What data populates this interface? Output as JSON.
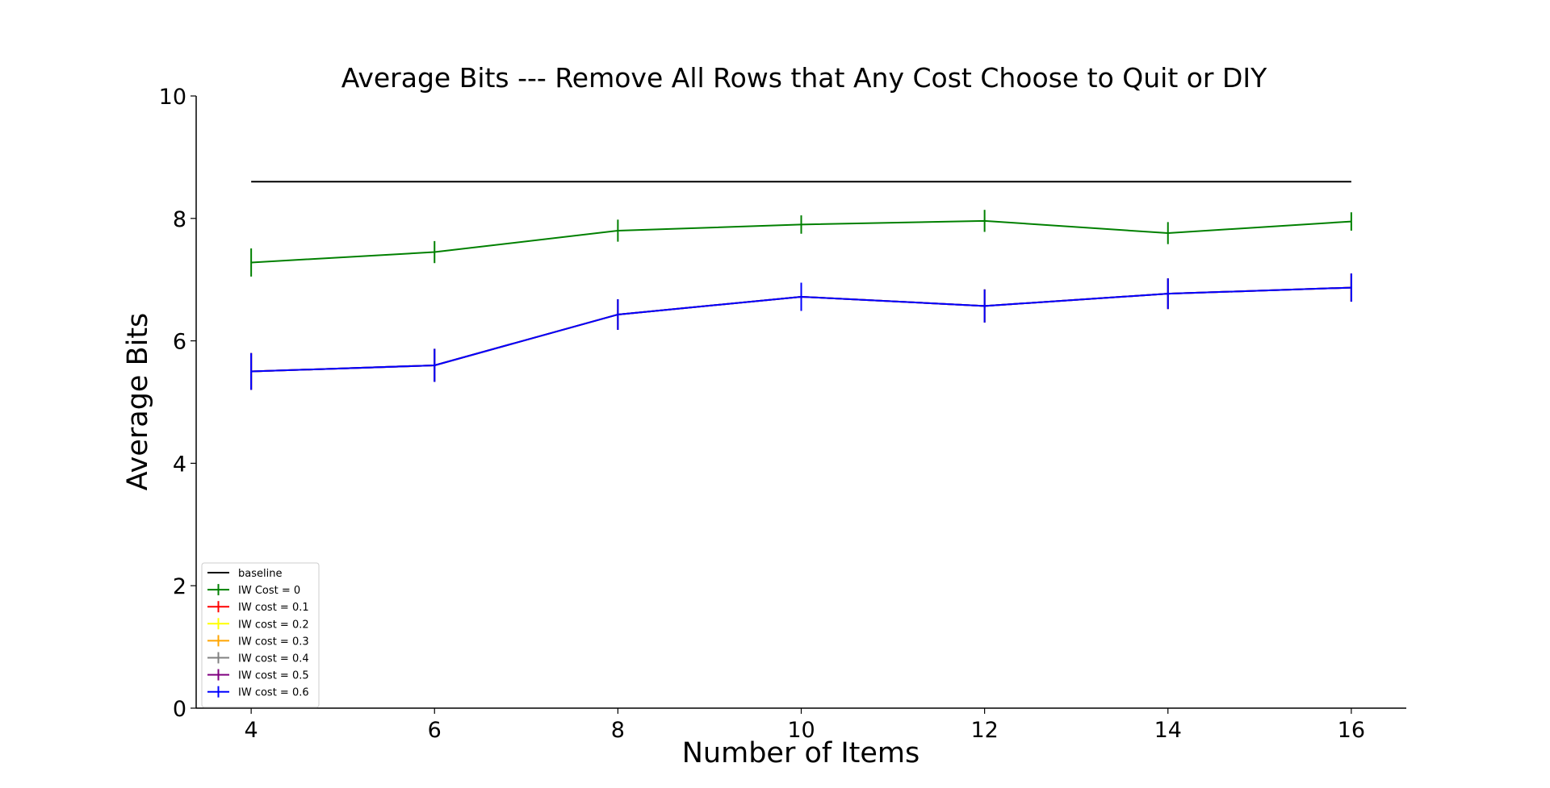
{
  "chart_data": {
    "type": "line",
    "title": "Average Bits --- Remove All Rows that Any Cost Choose to Quit or DIY",
    "xlabel": "Number of Items",
    "ylabel": "Average Bits",
    "x": [
      4,
      6,
      8,
      10,
      12,
      14,
      16
    ],
    "xlim": [
      3.4,
      16.6
    ],
    "ylim": [
      0,
      10
    ],
    "xticks": [
      "4",
      "6",
      "8",
      "10",
      "12",
      "14",
      "16"
    ],
    "yticks": [
      "0",
      "2",
      "4",
      "6",
      "8",
      "10"
    ],
    "grid": false,
    "legend_position": "lower-left",
    "series": [
      {
        "name": "baseline",
        "color": "#000000",
        "values": [
          8.6,
          8.6,
          8.6,
          8.6,
          8.6,
          8.6,
          8.6
        ],
        "errors": null
      },
      {
        "name": "IW Cost = 0",
        "color": "#008000",
        "values": [
          7.28,
          7.45,
          7.8,
          7.9,
          7.96,
          7.76,
          7.95
        ],
        "errors": [
          0.23,
          0.18,
          0.18,
          0.15,
          0.18,
          0.18,
          0.15
        ]
      },
      {
        "name": "IW cost = 0.1",
        "color": "#ff0000",
        "values": [
          5.5,
          5.6,
          6.43,
          6.72,
          6.57,
          6.77,
          6.87
        ],
        "errors": [
          0.3,
          0.27,
          0.25,
          0.23,
          0.27,
          0.25,
          0.23
        ]
      },
      {
        "name": "IW cost = 0.2",
        "color": "#ffff00",
        "values": [
          5.5,
          5.6,
          6.43,
          6.72,
          6.57,
          6.77,
          6.87
        ],
        "errors": [
          0.3,
          0.27,
          0.25,
          0.23,
          0.27,
          0.25,
          0.23
        ]
      },
      {
        "name": "IW cost = 0.3",
        "color": "#ffa500",
        "values": [
          5.5,
          5.6,
          6.43,
          6.72,
          6.57,
          6.77,
          6.87
        ],
        "errors": [
          0.3,
          0.27,
          0.25,
          0.23,
          0.27,
          0.25,
          0.23
        ]
      },
      {
        "name": "IW cost = 0.4",
        "color": "#808080",
        "values": [
          5.5,
          5.6,
          6.43,
          6.72,
          6.57,
          6.77,
          6.87
        ],
        "errors": [
          0.3,
          0.27,
          0.25,
          0.23,
          0.27,
          0.25,
          0.23
        ]
      },
      {
        "name": "IW cost = 0.5",
        "color": "#800080",
        "values": [
          5.5,
          5.6,
          6.43,
          6.72,
          6.57,
          6.77,
          6.87
        ],
        "errors": [
          0.3,
          0.27,
          0.25,
          0.23,
          0.27,
          0.25,
          0.23
        ]
      },
      {
        "name": "IW cost = 0.6",
        "color": "#0000ff",
        "values": [
          5.5,
          5.6,
          6.43,
          6.72,
          6.57,
          6.77,
          6.87
        ],
        "errors": [
          0.3,
          0.27,
          0.25,
          0.23,
          0.27,
          0.25,
          0.23
        ]
      }
    ]
  }
}
